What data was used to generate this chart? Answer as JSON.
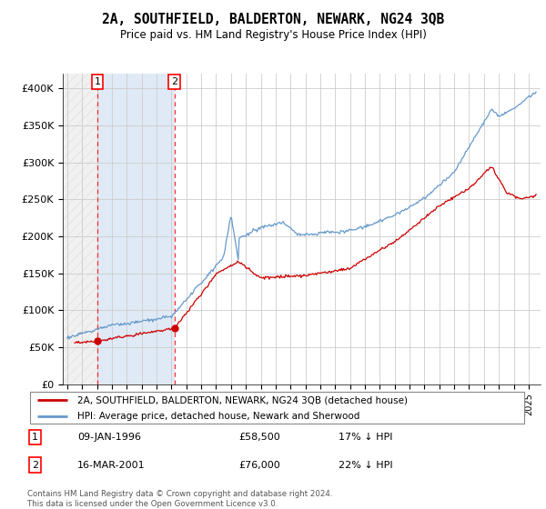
{
  "title": "2A, SOUTHFIELD, BALDERTON, NEWARK, NG24 3QB",
  "subtitle": "Price paid vs. HM Land Registry's House Price Index (HPI)",
  "legend_line1": "2A, SOUTHFIELD, BALDERTON, NEWARK, NG24 3QB (detached house)",
  "legend_line2": "HPI: Average price, detached house, Newark and Sherwood",
  "transaction1_label": "1",
  "transaction1_date": "09-JAN-1996",
  "transaction1_price": "£58,500",
  "transaction1_hpi": "17% ↓ HPI",
  "transaction1_year": 1996.03,
  "transaction1_value": 58500,
  "transaction2_label": "2",
  "transaction2_date": "16-MAR-2001",
  "transaction2_price": "£76,000",
  "transaction2_hpi": "22% ↓ HPI",
  "transaction2_year": 2001.21,
  "transaction2_value": 76000,
  "footer": "Contains HM Land Registry data © Crown copyright and database right 2024.\nThis data is licensed under the Open Government Licence v3.0.",
  "hpi_color": "#6699cc",
  "price_color": "#cc0000",
  "marker_color": "#cc0000",
  "ylim": [
    0,
    420000
  ],
  "yticks": [
    0,
    50000,
    100000,
    150000,
    200000,
    250000,
    300000,
    350000,
    400000
  ],
  "ytick_labels": [
    "£0",
    "£50K",
    "£100K",
    "£150K",
    "£200K",
    "£250K",
    "£300K",
    "£350K",
    "£400K"
  ],
  "xlim_start": 1993.7,
  "xlim_end": 2025.8
}
